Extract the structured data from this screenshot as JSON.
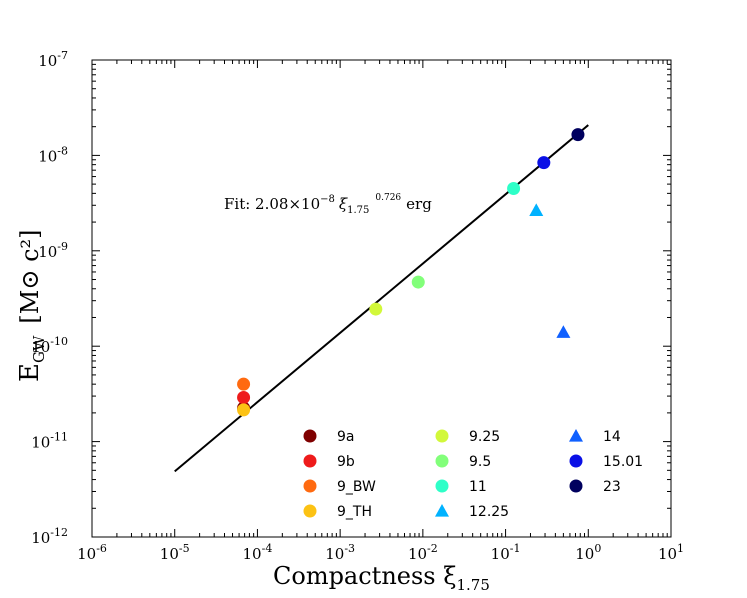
{
  "chart_data": {
    "type": "scatter",
    "title": "",
    "xlabel": "Compactness ξ",
    "xlabel_sub": "1.75",
    "ylabel": "E",
    "ylabel_sub": "GW",
    "ylabel_units": "[M⊙ c²]",
    "xscale": "log",
    "yscale": "log",
    "xlim": [
      1e-06,
      10
    ],
    "ylim": [
      1e-12,
      1e-07
    ],
    "x_ticks": [
      {
        "base": "10",
        "exp": "-6"
      },
      {
        "base": "10",
        "exp": "-5"
      },
      {
        "base": "10",
        "exp": "-4"
      },
      {
        "base": "10",
        "exp": "-3"
      },
      {
        "base": "10",
        "exp": "-2"
      },
      {
        "base": "10",
        "exp": "-1"
      },
      {
        "base": "10",
        "exp": "0"
      },
      {
        "base": "10",
        "exp": "1"
      }
    ],
    "y_ticks": [
      {
        "base": "10",
        "exp": "-12"
      },
      {
        "base": "10",
        "exp": "-11"
      },
      {
        "base": "10",
        "exp": "-10"
      },
      {
        "base": "10",
        "exp": "-9"
      },
      {
        "base": "10",
        "exp": "-8"
      },
      {
        "base": "10",
        "exp": "-7"
      }
    ],
    "fit": {
      "coefficient": 2.08e-08,
      "exponent": 0.726,
      "x_range": [
        1e-05,
        1.0
      ],
      "label_prefix": "Fit: 2.08×10",
      "label_exp": "−8",
      "label_var": "ξ",
      "label_sub": "1.75",
      "label_pow": "0.726",
      "label_suffix": "erg"
    },
    "series": [
      {
        "name": "9a",
        "marker": "circle",
        "color": "#7f0000",
        "x": 6.8e-05,
        "y": 2.25e-11
      },
      {
        "name": "9b",
        "marker": "circle",
        "color": "#ee1b1b",
        "x": 6.8e-05,
        "y": 2.9e-11
      },
      {
        "name": "9_BW",
        "marker": "circle",
        "color": "#ff6a10",
        "x": 6.8e-05,
        "y": 4e-11
      },
      {
        "name": "9_TH",
        "marker": "circle",
        "color": "#fcc214",
        "x": 6.8e-05,
        "y": 2.15e-11
      },
      {
        "name": "9.25",
        "marker": "circle",
        "color": "#d2f83a",
        "x": 0.0027,
        "y": 2.45e-10
      },
      {
        "name": "9.5",
        "marker": "circle",
        "color": "#82ff7a",
        "x": 0.0088,
        "y": 4.7e-10
      },
      {
        "name": "11",
        "marker": "circle",
        "color": "#2effc8",
        "x": 0.125,
        "y": 4.5e-09
      },
      {
        "name": "12.25",
        "marker": "triangle",
        "color": "#00b2ff",
        "x": 0.235,
        "y": 2.65e-09
      },
      {
        "name": "14",
        "marker": "triangle",
        "color": "#1060ff",
        "x": 0.5,
        "y": 1.4e-10
      },
      {
        "name": "15.01",
        "marker": "circle",
        "color": "#0a10e6",
        "x": 0.29,
        "y": 8.4e-09
      },
      {
        "name": "23",
        "marker": "circle",
        "color": "#00005e",
        "x": 0.75,
        "y": 1.65e-08
      }
    ],
    "legend_position": "lower-right",
    "legend_columns": 3,
    "grid": false
  }
}
